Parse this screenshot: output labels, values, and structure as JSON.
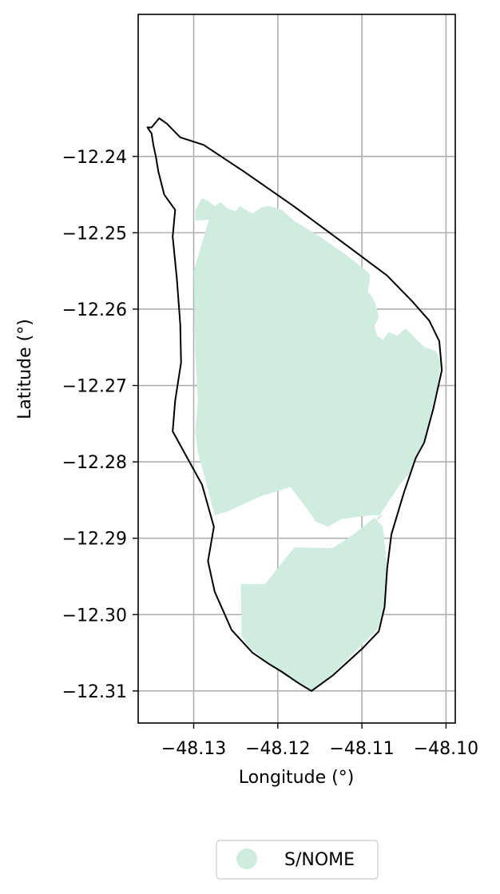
{
  "chart_data": {
    "type": "map",
    "xlabel": "Longitude (°)",
    "ylabel": "Latitude (°)",
    "xlim": [
      -48.1366,
      -48.0989
    ],
    "ylim": [
      -12.3142,
      -12.2214
    ],
    "grid": true,
    "x_ticks": [
      {
        "value": -48.13,
        "label": "−48.13"
      },
      {
        "value": -48.12,
        "label": "−48.12"
      },
      {
        "value": -48.11,
        "label": "−48.11"
      },
      {
        "value": -48.1,
        "label": "−48.10"
      }
    ],
    "y_ticks": [
      {
        "value": -12.24,
        "label": "−12.24"
      },
      {
        "value": -12.25,
        "label": "−12.25"
      },
      {
        "value": -12.26,
        "label": "−12.26"
      },
      {
        "value": -12.27,
        "label": "−12.27"
      },
      {
        "value": -12.28,
        "label": "−12.28"
      },
      {
        "value": -12.29,
        "label": "−12.29"
      },
      {
        "value": -12.3,
        "label": "−12.30"
      },
      {
        "value": -12.31,
        "label": "−12.31"
      }
    ],
    "legend": {
      "placement": "bottom-center",
      "entries": [
        {
          "label": "S/NOME",
          "color": "#d0ebdf"
        }
      ]
    },
    "layers": [
      {
        "name": "boundary",
        "kind": "outline",
        "stroke": "#000000",
        "coordinates": [
          [
            -48.135,
            -12.2362
          ],
          [
            -48.1341,
            -12.235
          ],
          [
            -48.1332,
            -12.2357
          ],
          [
            -48.1316,
            -12.2375
          ],
          [
            -48.1288,
            -12.2385
          ],
          [
            -48.124,
            -12.242
          ],
          [
            -48.118,
            -12.2466
          ],
          [
            -48.112,
            -12.2515
          ],
          [
            -48.107,
            -12.2556
          ],
          [
            -48.104,
            -12.259
          ],
          [
            -48.102,
            -12.2615
          ],
          [
            -48.1008,
            -12.2642
          ],
          [
            -48.1005,
            -12.268
          ],
          [
            -48.1015,
            -12.273
          ],
          [
            -48.1026,
            -12.2775
          ],
          [
            -48.1036,
            -12.2795
          ],
          [
            -48.105,
            -12.284
          ],
          [
            -48.1065,
            -12.2895
          ],
          [
            -48.107,
            -12.294
          ],
          [
            -48.1073,
            -12.299
          ],
          [
            -48.108,
            -12.3022
          ],
          [
            -48.11,
            -12.3045
          ],
          [
            -48.1135,
            -12.308
          ],
          [
            -48.116,
            -12.31
          ],
          [
            -48.1175,
            -12.309
          ],
          [
            -48.1195,
            -12.3075
          ],
          [
            -48.121,
            -12.3065
          ],
          [
            -48.123,
            -12.305
          ],
          [
            -48.1255,
            -12.302
          ],
          [
            -48.1275,
            -12.297
          ],
          [
            -48.1283,
            -12.293
          ],
          [
            -48.1276,
            -12.2885
          ],
          [
            -48.129,
            -12.283
          ],
          [
            -48.131,
            -12.279
          ],
          [
            -48.1325,
            -12.276
          ],
          [
            -48.1322,
            -12.272
          ],
          [
            -48.1315,
            -12.267
          ],
          [
            -48.1316,
            -12.262
          ],
          [
            -48.132,
            -12.256
          ],
          [
            -48.1325,
            -12.2505
          ],
          [
            -48.1322,
            -12.247
          ],
          [
            -48.1335,
            -12.245
          ],
          [
            -48.1342,
            -12.242
          ],
          [
            -48.1345,
            -12.24
          ],
          [
            -48.1348,
            -12.2385
          ],
          [
            -48.135,
            -12.237
          ],
          [
            -48.1355,
            -12.2362
          ],
          [
            -48.135,
            -12.2362
          ]
        ]
      },
      {
        "name": "S/NOME",
        "kind": "fill",
        "fill": "#d0ebdf",
        "coordinates": [
          [
            -48.1282,
            -12.2483
          ],
          [
            -48.1298,
            -12.2484
          ],
          [
            -48.1298,
            -12.247
          ],
          [
            -48.129,
            -12.2455
          ],
          [
            -48.1283,
            -12.2458
          ],
          [
            -48.1275,
            -12.2465
          ],
          [
            -48.1268,
            -12.246
          ],
          [
            -48.126,
            -12.2468
          ],
          [
            -48.125,
            -12.2472
          ],
          [
            -48.1245,
            -12.2465
          ],
          [
            -48.1238,
            -12.247
          ],
          [
            -48.123,
            -12.2475
          ],
          [
            -48.122,
            -12.2467
          ],
          [
            -48.121,
            -12.2465
          ],
          [
            -48.1195,
            -12.247
          ],
          [
            -48.118,
            -12.2485
          ],
          [
            -48.115,
            -12.2505
          ],
          [
            -48.112,
            -12.2528
          ],
          [
            -48.11,
            -12.2545
          ],
          [
            -48.109,
            -12.2555
          ],
          [
            -48.1093,
            -12.2578
          ],
          [
            -48.109,
            -12.258
          ],
          [
            -48.1085,
            -12.259
          ],
          [
            -48.1082,
            -12.26
          ],
          [
            -48.108,
            -12.261
          ],
          [
            -48.1085,
            -12.2622
          ],
          [
            -48.1082,
            -12.2635
          ],
          [
            -48.1075,
            -12.264
          ],
          [
            -48.1068,
            -12.263
          ],
          [
            -48.1058,
            -12.2635
          ],
          [
            -48.1048,
            -12.2625
          ],
          [
            -48.1035,
            -12.264
          ],
          [
            -48.1025,
            -12.265
          ],
          [
            -48.1012,
            -12.2655
          ],
          [
            -48.1006,
            -12.267
          ],
          [
            -48.101,
            -12.27
          ],
          [
            -48.1025,
            -12.277
          ],
          [
            -48.104,
            -12.281
          ],
          [
            -48.1055,
            -12.283
          ],
          [
            -48.107,
            -12.2855
          ],
          [
            -48.1085,
            -12.288
          ],
          [
            -48.1075,
            -12.287
          ],
          [
            -48.109,
            -12.287
          ],
          [
            -48.1125,
            -12.2875
          ],
          [
            -48.114,
            -12.2885
          ],
          [
            -48.1155,
            -12.2878
          ],
          [
            -48.1165,
            -12.2862
          ],
          [
            -48.1185,
            -12.2833
          ],
          [
            -48.122,
            -12.2845
          ],
          [
            -48.126,
            -12.2865
          ],
          [
            -48.1275,
            -12.287
          ],
          [
            -48.1287,
            -12.282
          ],
          [
            -48.1295,
            -12.2788
          ],
          [
            -48.1298,
            -12.276
          ],
          [
            -48.1295,
            -12.272
          ],
          [
            -48.1298,
            -12.266
          ],
          [
            -48.13,
            -12.255
          ],
          [
            -48.1282,
            -12.2483
          ]
        ]
      },
      {
        "name": "S/NOME",
        "kind": "fill",
        "fill": "#d0ebdf",
        "coordinates": [
          [
            -48.1235,
            -12.3042
          ],
          [
            -48.1243,
            -12.3028
          ],
          [
            -48.1244,
            -12.296
          ],
          [
            -48.1215,
            -12.296
          ],
          [
            -48.119,
            -12.2925
          ],
          [
            -48.118,
            -12.2912
          ],
          [
            -48.1135,
            -12.2913
          ],
          [
            -48.111,
            -12.2895
          ],
          [
            -48.1085,
            -12.2873
          ],
          [
            -48.1075,
            -12.2885
          ],
          [
            -48.107,
            -12.294
          ],
          [
            -48.1073,
            -12.299
          ],
          [
            -48.1082,
            -12.302
          ],
          [
            -48.1105,
            -12.3045
          ],
          [
            -48.1135,
            -12.3078
          ],
          [
            -48.116,
            -12.31
          ],
          [
            -48.118,
            -12.3088
          ],
          [
            -48.121,
            -12.3065
          ],
          [
            -48.1235,
            -12.3042
          ]
        ]
      }
    ]
  }
}
